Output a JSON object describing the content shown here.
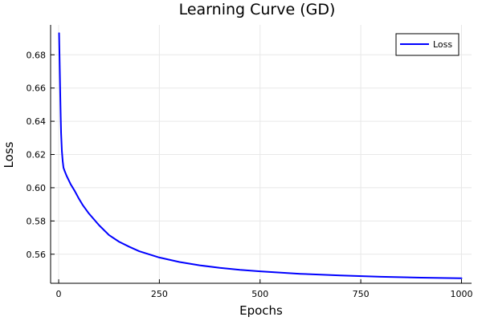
{
  "chart_data": {
    "type": "line",
    "title": "Learning Curve (GD)",
    "xlabel": "Epochs",
    "ylabel": "Loss",
    "xlim": [
      -20,
      1025
    ],
    "ylim": [
      0.5425,
      0.698
    ],
    "xticks": [
      0,
      250,
      500,
      750,
      1000
    ],
    "xtick_labels": [
      "0",
      "250",
      "500",
      "750",
      "1000"
    ],
    "yticks": [
      0.56,
      0.58,
      0.6,
      0.62,
      0.64,
      0.66,
      0.68
    ],
    "ytick_labels": [
      "0.56",
      "0.58",
      "0.60",
      "0.62",
      "0.64",
      "0.66",
      "0.68"
    ],
    "grid": true,
    "legend_position": "top-right",
    "series": [
      {
        "name": "Loss",
        "color": "#0000ff",
        "x": [
          1,
          2,
          3,
          4,
          5,
          6,
          8,
          10,
          12,
          15,
          20,
          25,
          30,
          40,
          50,
          60,
          75,
          100,
          125,
          150,
          175,
          200,
          250,
          300,
          350,
          400,
          450,
          500,
          600,
          700,
          800,
          900,
          1000
        ],
        "y": [
          0.693,
          0.681,
          0.668,
          0.655,
          0.643,
          0.633,
          0.622,
          0.616,
          0.612,
          0.61,
          0.607,
          0.6045,
          0.602,
          0.598,
          0.5935,
          0.5895,
          0.5845,
          0.5775,
          0.5715,
          0.5675,
          0.5645,
          0.5618,
          0.558,
          0.5553,
          0.5533,
          0.5518,
          0.5506,
          0.5497,
          0.5482,
          0.5472,
          0.5464,
          0.5459,
          0.5455
        ]
      }
    ]
  }
}
